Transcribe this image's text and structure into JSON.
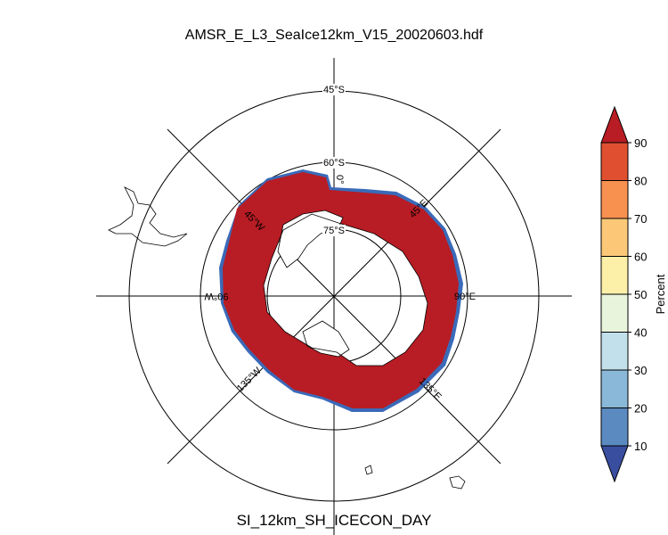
{
  "title": "AMSR_E_L3_SeaIce12km_V15_20020603.hdf",
  "subtitle": "SI_12km_SH_ICECON_DAY",
  "lat_labels": [
    "45°S",
    "60°S",
    "75°S"
  ],
  "lon_labels": {
    "east90": "90°E",
    "west90": "90°W",
    "ne45": "45°E",
    "nw45": "45°W",
    "se135": "135°E",
    "sw135": "135°W",
    "top0": "0°"
  },
  "colorbar": {
    "label": "Percent",
    "ticks": [
      "10",
      "20",
      "30",
      "40",
      "50",
      "60",
      "70",
      "80",
      "90"
    ],
    "colors": [
      "#3a4ea0",
      "#5a8ac0",
      "#8ab8d8",
      "#c2e0ec",
      "#e8f4dc",
      "#fcf0a8",
      "#fcc878",
      "#f89050",
      "#e05030",
      "#b81c24"
    ]
  },
  "ice_color": "#b81c24",
  "edge_color": "#3a6ab8"
}
